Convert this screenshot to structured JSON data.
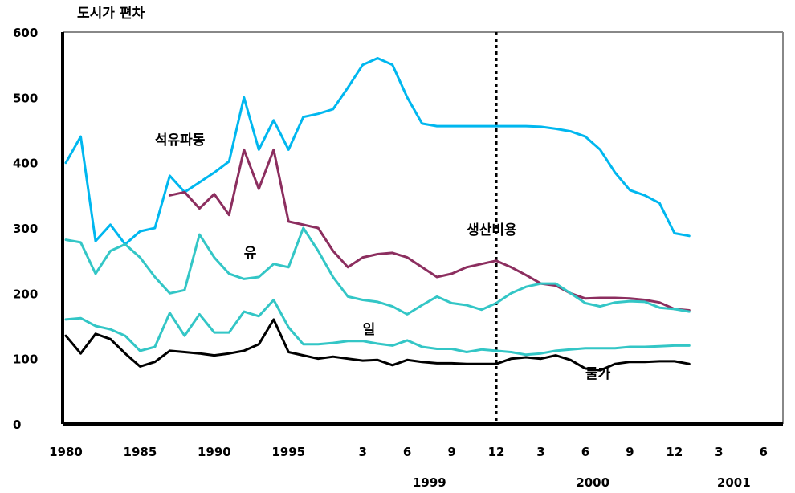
{
  "chart_data": {
    "type": "line",
    "unit_label": "도시가 편차",
    "ylim": [
      0,
      600
    ],
    "y_ticks": [
      0,
      100,
      200,
      300,
      400,
      500,
      600
    ],
    "y_tick_labels": [
      "0",
      "100",
      "200",
      "300",
      "400",
      "500",
      "600"
    ],
    "x_tick_labels": [
      {
        "t": 0,
        "label": "1980"
      },
      {
        "t": 5,
        "label": "1985"
      },
      {
        "t": 10,
        "label": "1990"
      },
      {
        "t": 15,
        "label": "1995"
      },
      {
        "t": 20,
        "label": "3"
      },
      {
        "t": 23,
        "label": "6"
      },
      {
        "t": 26,
        "label": "9"
      },
      {
        "t": 29,
        "label": "12"
      },
      {
        "t": 32,
        "label": "3"
      },
      {
        "t": 35,
        "label": "6"
      },
      {
        "t": 38,
        "label": "9"
      },
      {
        "t": 41,
        "label": "12"
      },
      {
        "t": 44,
        "label": "3"
      },
      {
        "t": 47,
        "label": "6"
      }
    ],
    "year_labels": [
      {
        "t": 24.5,
        "label": "1999"
      },
      {
        "t": 35.5,
        "label": "2000"
      },
      {
        "t": 45,
        "label": "2001"
      }
    ],
    "divider_t": 29,
    "series": [
      {
        "name": "석유파동",
        "color": "#00b7ef",
        "label_t": 6,
        "label_v": 428,
        "points": [
          [
            0,
            400
          ],
          [
            1,
            440
          ],
          [
            2,
            280
          ],
          [
            3,
            305
          ],
          [
            4,
            275
          ],
          [
            5,
            295
          ],
          [
            6,
            300
          ],
          [
            7,
            380
          ],
          [
            8,
            355
          ],
          [
            9,
            370
          ],
          [
            10,
            385
          ],
          [
            11,
            402
          ],
          [
            12,
            500
          ],
          [
            13,
            420
          ],
          [
            14,
            465
          ],
          [
            15,
            420
          ],
          [
            16,
            470
          ],
          [
            17,
            475
          ],
          [
            18,
            482
          ],
          [
            19,
            515
          ],
          [
            20,
            550
          ],
          [
            21,
            560
          ],
          [
            22,
            550
          ],
          [
            23,
            500
          ],
          [
            24,
            460
          ],
          [
            25,
            456
          ],
          [
            26,
            456
          ],
          [
            27,
            456
          ],
          [
            28,
            456
          ],
          [
            29,
            456
          ],
          [
            30,
            456
          ],
          [
            31,
            456
          ],
          [
            32,
            455
          ],
          [
            33,
            452
          ],
          [
            34,
            448
          ],
          [
            35,
            440
          ],
          [
            36,
            420
          ],
          [
            37,
            385
          ],
          [
            38,
            358
          ],
          [
            39,
            350
          ],
          [
            40,
            338
          ],
          [
            41,
            292
          ],
          [
            42,
            288
          ]
        ]
      },
      {
        "name": "생산비용",
        "color": "#8c2e5f",
        "label_t": 27,
        "label_v": 290,
        "points": [
          [
            7,
            350
          ],
          [
            8,
            355
          ],
          [
            9,
            330
          ],
          [
            10,
            352
          ],
          [
            11,
            320
          ],
          [
            12,
            420
          ],
          [
            13,
            360
          ],
          [
            14,
            420
          ],
          [
            15,
            310
          ],
          [
            16,
            305
          ],
          [
            17,
            300
          ],
          [
            18,
            265
          ],
          [
            19,
            240
          ],
          [
            20,
            255
          ],
          [
            21,
            260
          ],
          [
            22,
            262
          ],
          [
            23,
            255
          ],
          [
            24,
            240
          ],
          [
            25,
            225
          ],
          [
            26,
            230
          ],
          [
            27,
            240
          ],
          [
            28,
            245
          ],
          [
            29,
            250
          ],
          [
            30,
            240
          ],
          [
            31,
            228
          ],
          [
            32,
            215
          ],
          [
            33,
            212
          ],
          [
            34,
            200
          ],
          [
            35,
            192
          ],
          [
            36,
            193
          ],
          [
            37,
            193
          ],
          [
            38,
            192
          ],
          [
            39,
            190
          ],
          [
            40,
            186
          ],
          [
            41,
            176
          ],
          [
            42,
            174
          ]
        ]
      },
      {
        "name": "유",
        "color": "#33c6c6",
        "label_t": 12,
        "label_v": 255,
        "points": [
          [
            0,
            282
          ],
          [
            1,
            278
          ],
          [
            2,
            230
          ],
          [
            3,
            265
          ],
          [
            4,
            275
          ],
          [
            5,
            255
          ],
          [
            6,
            225
          ],
          [
            7,
            200
          ],
          [
            8,
            205
          ],
          [
            9,
            290
          ],
          [
            10,
            255
          ],
          [
            11,
            230
          ],
          [
            12,
            222
          ],
          [
            13,
            225
          ],
          [
            14,
            245
          ],
          [
            15,
            240
          ],
          [
            16,
            300
          ],
          [
            17,
            265
          ],
          [
            18,
            225
          ],
          [
            19,
            195
          ],
          [
            20,
            190
          ],
          [
            21,
            187
          ],
          [
            22,
            180
          ],
          [
            23,
            168
          ],
          [
            24,
            182
          ],
          [
            25,
            195
          ],
          [
            26,
            185
          ],
          [
            27,
            182
          ],
          [
            28,
            175
          ],
          [
            29,
            185
          ],
          [
            30,
            200
          ],
          [
            31,
            210
          ],
          [
            32,
            215
          ],
          [
            33,
            215
          ],
          [
            34,
            200
          ],
          [
            35,
            185
          ],
          [
            36,
            180
          ],
          [
            37,
            186
          ],
          [
            38,
            188
          ],
          [
            39,
            187
          ],
          [
            40,
            178
          ],
          [
            41,
            176
          ],
          [
            42,
            172
          ]
        ]
      },
      {
        "name": "일",
        "color": "#33c6c6",
        "label_t": 20,
        "label_v": 138,
        "points": [
          [
            0,
            160
          ],
          [
            1,
            162
          ],
          [
            2,
            150
          ],
          [
            3,
            145
          ],
          [
            4,
            135
          ],
          [
            5,
            112
          ],
          [
            6,
            118
          ],
          [
            7,
            170
          ],
          [
            8,
            135
          ],
          [
            9,
            168
          ],
          [
            10,
            140
          ],
          [
            11,
            140
          ],
          [
            12,
            172
          ],
          [
            13,
            165
          ],
          [
            14,
            190
          ],
          [
            15,
            148
          ],
          [
            16,
            122
          ],
          [
            17,
            122
          ],
          [
            18,
            124
          ],
          [
            19,
            127
          ],
          [
            20,
            127
          ],
          [
            21,
            123
          ],
          [
            22,
            120
          ],
          [
            23,
            128
          ],
          [
            24,
            118
          ],
          [
            25,
            115
          ],
          [
            26,
            115
          ],
          [
            27,
            110
          ],
          [
            28,
            114
          ],
          [
            29,
            112
          ],
          [
            30,
            110
          ],
          [
            31,
            106
          ],
          [
            32,
            108
          ],
          [
            33,
            112
          ],
          [
            34,
            114
          ],
          [
            35,
            116
          ],
          [
            36,
            116
          ],
          [
            37,
            116
          ],
          [
            38,
            118
          ],
          [
            39,
            118
          ],
          [
            40,
            119
          ],
          [
            41,
            120
          ],
          [
            42,
            120
          ]
        ]
      },
      {
        "name": "물가",
        "color": "#000000",
        "label_t": 35,
        "label_v": 70,
        "points": [
          [
            0,
            135
          ],
          [
            1,
            108
          ],
          [
            2,
            138
          ],
          [
            3,
            130
          ],
          [
            4,
            108
          ],
          [
            5,
            88
          ],
          [
            6,
            95
          ],
          [
            7,
            112
          ],
          [
            8,
            110
          ],
          [
            9,
            108
          ],
          [
            10,
            105
          ],
          [
            11,
            108
          ],
          [
            12,
            112
          ],
          [
            13,
            122
          ],
          [
            14,
            160
          ],
          [
            15,
            110
          ],
          [
            16,
            105
          ],
          [
            17,
            100
          ],
          [
            18,
            103
          ],
          [
            19,
            100
          ],
          [
            20,
            97
          ],
          [
            21,
            98
          ],
          [
            22,
            90
          ],
          [
            23,
            98
          ],
          [
            24,
            95
          ],
          [
            25,
            93
          ],
          [
            26,
            93
          ],
          [
            27,
            92
          ],
          [
            28,
            92
          ],
          [
            29,
            92
          ],
          [
            30,
            100
          ],
          [
            31,
            102
          ],
          [
            32,
            100
          ],
          [
            33,
            105
          ],
          [
            34,
            98
          ],
          [
            35,
            85
          ],
          [
            36,
            82
          ],
          [
            37,
            92
          ],
          [
            38,
            95
          ],
          [
            39,
            95
          ],
          [
            40,
            96
          ],
          [
            41,
            96
          ],
          [
            42,
            92
          ]
        ]
      }
    ]
  }
}
